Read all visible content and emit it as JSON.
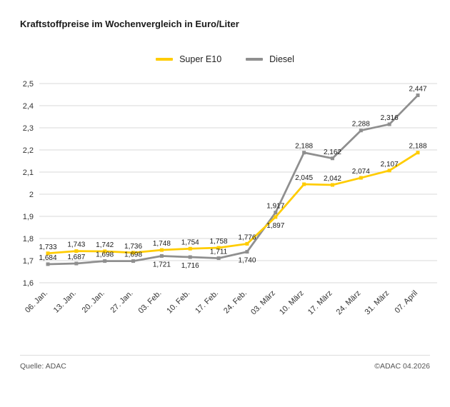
{
  "title": "Kraftstoffpreise im Wochenvergleich in Euro/Liter",
  "footer": {
    "source": "Quelle: ADAC",
    "copyright": "©ADAC 04.2026"
  },
  "colors": {
    "super_e10": "#FFCC00",
    "diesel": "#8F8F8F",
    "grid": "#d9d9d9",
    "axis_text": "#333333",
    "label_text": "#1a1a1a"
  },
  "chart_data": {
    "type": "line",
    "title": "Kraftstoffpreise im Wochenvergleich in Euro/Liter",
    "xlabel": "",
    "ylabel": "Euro/Liter",
    "ylim": [
      1.6,
      2.5
    ],
    "ytick_step": 0.1,
    "grid": true,
    "legend_position": "top-center",
    "categories": [
      "06. Jan.",
      "13. Jan.",
      "20. Jan.",
      "27. Jan.",
      "03. Feb.",
      "10. Feb.",
      "17. Feb.",
      "24. Feb.",
      "03. März",
      "10. März",
      "17. März",
      "24. März",
      "31. März",
      "07. April"
    ],
    "series": [
      {
        "name": "Super E10",
        "color": "#FFCC00",
        "values": [
          1.733,
          1.743,
          1.742,
          1.736,
          1.748,
          1.754,
          1.758,
          1.776,
          1.897,
          2.045,
          2.042,
          2.074,
          2.107,
          2.188
        ],
        "label_sides": [
          "above",
          "above",
          "above",
          "above",
          "above",
          "above",
          "above",
          "above",
          "below",
          "above",
          "above",
          "above",
          "above",
          "above"
        ]
      },
      {
        "name": "Diesel",
        "color": "#8F8F8F",
        "values": [
          1.684,
          1.687,
          1.698,
          1.698,
          1.721,
          1.716,
          1.711,
          1.74,
          1.917,
          2.188,
          2.162,
          2.288,
          2.316,
          2.447
        ],
        "label_sides": [
          "above",
          "above",
          "above",
          "above",
          "below",
          "below",
          "above",
          "below",
          "above",
          "above",
          "above",
          "above",
          "above",
          "above"
        ]
      }
    ]
  }
}
